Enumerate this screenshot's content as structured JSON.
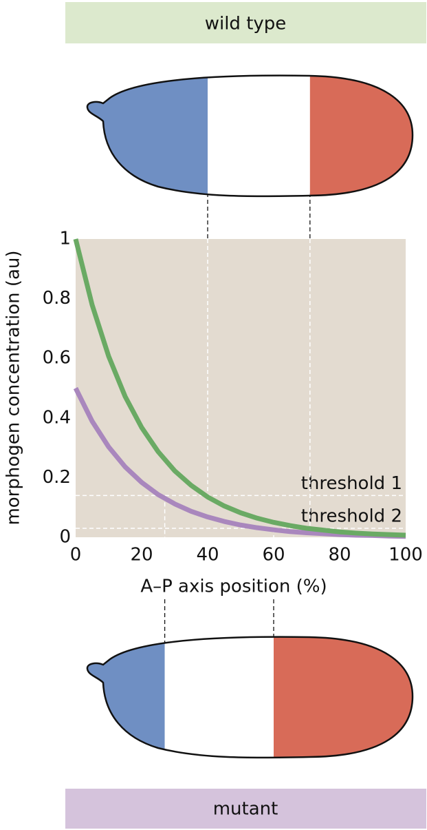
{
  "wild_type_label": "wild type",
  "mutant_label": "mutant",
  "chart_data": {
    "type": "line",
    "ylabel": "morphogen concentration (au)",
    "xlabel": "A–P axis position (%)",
    "x": [
      0,
      5,
      10,
      15,
      20,
      25,
      30,
      35,
      40,
      45,
      50,
      55,
      60,
      65,
      70,
      75,
      80,
      85,
      90,
      95,
      100
    ],
    "series": [
      {
        "color": "#6aaa64",
        "values": [
          1,
          0.779,
          0.607,
          0.472,
          0.368,
          0.287,
          0.223,
          0.174,
          0.135,
          0.105,
          0.082,
          0.064,
          0.05,
          0.039,
          0.03,
          0.024,
          0.018,
          0.014,
          0.011,
          0.009,
          0.007
        ]
      },
      {
        "color": "#a987bd",
        "values": [
          0.5,
          0.389,
          0.303,
          0.236,
          0.184,
          0.143,
          0.112,
          0.087,
          0.068,
          0.053,
          0.041,
          0.032,
          0.025,
          0.019,
          0.015,
          0.012,
          0.009,
          0.007,
          0.006,
          0.004,
          0.003
        ]
      }
    ],
    "xlim": [
      0,
      100
    ],
    "ylim": [
      0,
      1
    ],
    "xticks": [
      0,
      20,
      40,
      60,
      80,
      100
    ],
    "yticks": [
      0,
      0.2,
      0.4,
      0.6,
      0.8,
      1
    ],
    "thresholds": [
      {
        "label": "threshold 1",
        "value": 0.14
      },
      {
        "label": "threshold 2",
        "value": 0.03
      }
    ],
    "wild_type_boundaries": [
      40,
      71
    ],
    "mutant_boundaries": [
      27,
      60
    ]
  }
}
